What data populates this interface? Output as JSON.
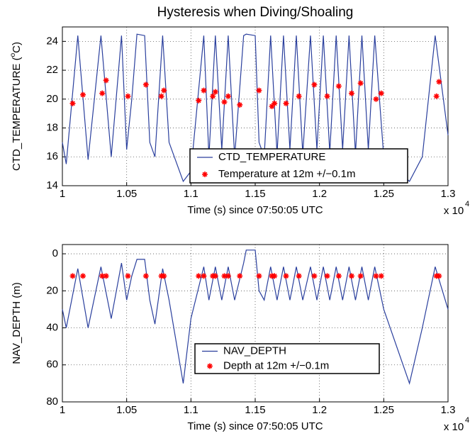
{
  "chart_data": [
    {
      "type": "line",
      "title": "Hysteresis when Diving/Shoaling",
      "xlabel": "Time (s) since 07:50:05 UTC",
      "x_multiplier": "x 10",
      "x_multiplier_exp": "4",
      "ylabel": "CTD_TEMPERATURE (",
      "ylabel_sup": "o",
      "ylabel_end": "C)",
      "xlim": [
        1,
        1.3
      ],
      "xticks": [
        1,
        1.05,
        1.1,
        1.15,
        1.2,
        1.25,
        1.3
      ],
      "ylim": [
        14,
        25
      ],
      "yticks": [
        14,
        16,
        18,
        20,
        22,
        24
      ],
      "y_reversed": false,
      "grid": true,
      "legend_loc": "lower center",
      "series": [
        {
          "name": "CTD_TEMPERATURE",
          "color": "#2a3f9d",
          "mark": "line",
          "x": [
            1.0,
            1.003,
            1.012,
            1.02,
            1.03,
            1.038,
            1.046,
            1.05,
            1.054,
            1.058,
            1.064,
            1.068,
            1.072,
            1.078,
            1.083,
            1.094,
            1.1,
            1.11,
            1.114,
            1.119,
            1.124,
            1.129,
            1.134,
            1.141,
            1.143,
            1.15,
            1.153,
            1.157,
            1.162,
            1.167,
            1.172,
            1.177,
            1.182,
            1.187,
            1.193,
            1.198,
            1.203,
            1.208,
            1.213,
            1.218,
            1.223,
            1.228,
            1.233,
            1.238,
            1.243,
            1.25,
            1.27,
            1.28,
            1.29,
            1.3
          ],
          "values": [
            17,
            15.5,
            24.4,
            15.8,
            24.4,
            16,
            24.4,
            16.5,
            20,
            24.5,
            24.4,
            17,
            16,
            24.4,
            17,
            14.3,
            15,
            24.4,
            16,
            24.4,
            16.5,
            24.4,
            16,
            24.4,
            24.5,
            24.4,
            17,
            16,
            24.4,
            16.2,
            24.4,
            16.5,
            24.4,
            16.2,
            24.4,
            16.5,
            24.4,
            16.3,
            24.4,
            16.5,
            24.4,
            16.2,
            24.4,
            16.5,
            24.4,
            16,
            14.3,
            16,
            24.4,
            17.5
          ]
        },
        {
          "name": "Temperature at 12m +/−0.1m",
          "color": "#ff0000",
          "mark": "star",
          "x": [
            1.008,
            1.016,
            1.031,
            1.034,
            1.051,
            1.065,
            1.077,
            1.079,
            1.106,
            1.11,
            1.117,
            1.119,
            1.126,
            1.129,
            1.138,
            1.153,
            1.163,
            1.165,
            1.174,
            1.184,
            1.196,
            1.206,
            1.215,
            1.225,
            1.232,
            1.244,
            1.248,
            1.291,
            1.293
          ],
          "values": [
            19.7,
            20.3,
            20.4,
            21.3,
            20.2,
            21.0,
            20.2,
            20.6,
            19.9,
            20.6,
            20.2,
            20.5,
            19.8,
            20.2,
            19.6,
            20.6,
            19.5,
            19.7,
            19.7,
            20.2,
            21.0,
            20.2,
            20.9,
            20.4,
            21.1,
            20.0,
            20.4,
            20.2,
            21.2
          ]
        }
      ]
    },
    {
      "type": "line",
      "xlabel": "Time (s) since 07:50:05 UTC",
      "x_multiplier": "x 10",
      "x_multiplier_exp": "4",
      "ylabel": "NAV_DEPTH (m)",
      "xlim": [
        1,
        1.3
      ],
      "xticks": [
        1,
        1.05,
        1.1,
        1.15,
        1.2,
        1.25,
        1.3
      ],
      "ylim": [
        -5,
        80
      ],
      "yticks": [
        0,
        20,
        40,
        60,
        80
      ],
      "y_reversed": true,
      "grid": true,
      "legend_loc": "lower center",
      "series": [
        {
          "name": "NAV_DEPTH",
          "color": "#2a3f9d",
          "mark": "line",
          "x": [
            1.0,
            1.003,
            1.012,
            1.02,
            1.03,
            1.038,
            1.046,
            1.05,
            1.054,
            1.058,
            1.064,
            1.068,
            1.072,
            1.078,
            1.083,
            1.094,
            1.1,
            1.11,
            1.114,
            1.119,
            1.124,
            1.129,
            1.134,
            1.141,
            1.143,
            1.15,
            1.153,
            1.157,
            1.162,
            1.167,
            1.172,
            1.177,
            1.182,
            1.187,
            1.193,
            1.198,
            1.203,
            1.208,
            1.213,
            1.218,
            1.223,
            1.228,
            1.233,
            1.238,
            1.243,
            1.25,
            1.27,
            1.28,
            1.29,
            1.3
          ],
          "values": [
            30,
            40,
            8,
            40,
            7,
            35,
            5,
            25,
            12,
            3,
            3,
            25,
            38,
            8,
            25,
            70,
            35,
            7,
            25,
            7,
            25,
            7,
            25,
            5,
            -2,
            -2,
            20,
            25,
            7,
            25,
            7,
            25,
            7,
            25,
            7,
            25,
            7,
            25,
            7,
            25,
            7,
            25,
            7,
            25,
            7,
            30,
            70,
            40,
            7,
            30
          ]
        },
        {
          "name": "Depth at 12m +/−0.1m",
          "color": "#ff0000",
          "mark": "star",
          "x": [
            1.008,
            1.016,
            1.031,
            1.034,
            1.051,
            1.065,
            1.077,
            1.079,
            1.106,
            1.11,
            1.117,
            1.119,
            1.126,
            1.129,
            1.138,
            1.153,
            1.163,
            1.165,
            1.174,
            1.184,
            1.196,
            1.206,
            1.215,
            1.225,
            1.232,
            1.244,
            1.248,
            1.291,
            1.293
          ],
          "values": [
            12,
            12,
            12,
            12,
            12,
            12,
            12,
            12,
            12,
            12,
            12,
            12,
            12,
            12,
            12,
            12,
            12,
            12,
            12,
            12,
            12,
            12,
            12,
            12,
            12,
            12,
            12,
            12,
            12
          ]
        }
      ]
    }
  ]
}
